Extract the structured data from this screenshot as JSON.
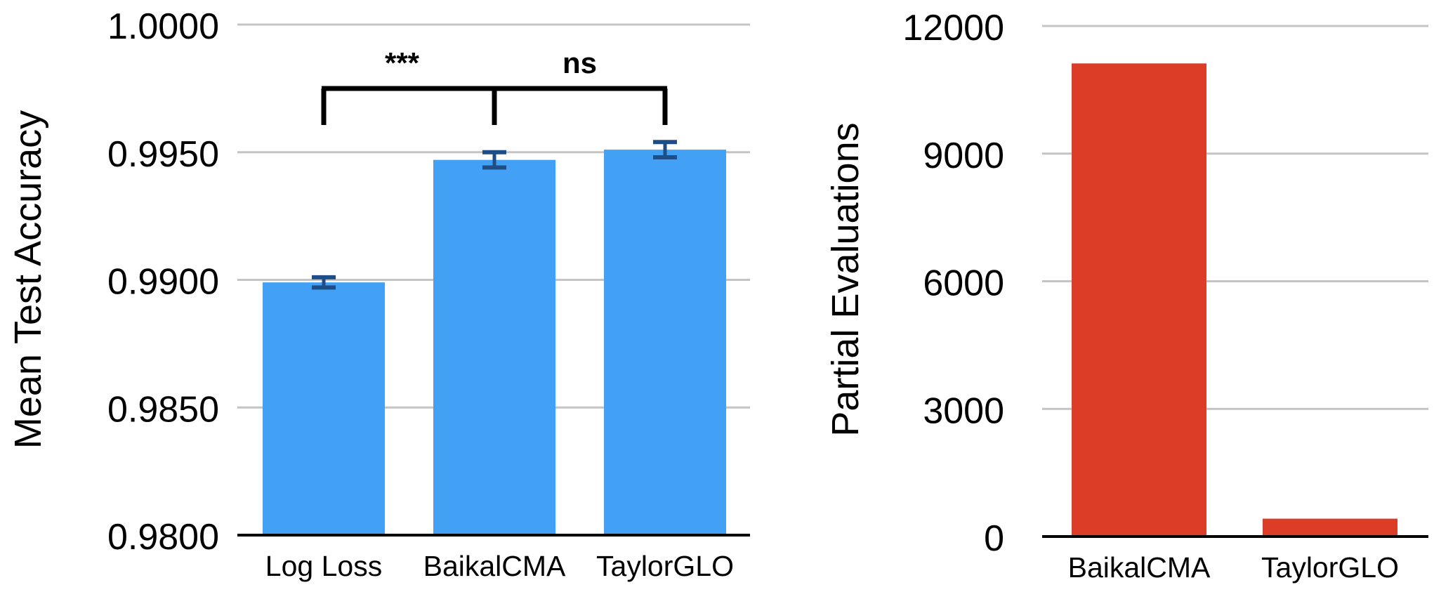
{
  "chart_data": [
    {
      "type": "bar",
      "categories": [
        "Log Loss",
        "BaikalCMA",
        "TaylorGLO"
      ],
      "values": [
        0.9899,
        0.9947,
        0.9951
      ],
      "error_bars": [
        0.0002,
        0.0003,
        0.0003
      ],
      "ylabel": "Mean Test Accuracy",
      "xlabel": "",
      "ylim": [
        0.98,
        1.0
      ],
      "yticks": [
        "0.9800",
        "0.9850",
        "0.9900",
        "0.9950",
        "1.0000"
      ],
      "ytick_values": [
        0.98,
        0.985,
        0.99,
        0.995,
        1.0
      ],
      "grid": true,
      "bar_color": "#42a0f5",
      "error_color": "#1f4e86",
      "significance": [
        {
          "from": "Log Loss",
          "to": "BaikalCMA",
          "label": "***"
        },
        {
          "from": "BaikalCMA",
          "to": "TaylorGLO",
          "label": "ns"
        }
      ]
    },
    {
      "type": "bar",
      "categories": [
        "BaikalCMA",
        "TaylorGLO"
      ],
      "values": [
        11120,
        420
      ],
      "ylabel": "Partial Evaluations",
      "xlabel": "",
      "ylim": [
        0,
        12000
      ],
      "yticks": [
        "0",
        "3000",
        "6000",
        "9000",
        "12000"
      ],
      "ytick_values": [
        0,
        3000,
        6000,
        9000,
        12000
      ],
      "grid": true,
      "bar_color": "#dc3d26"
    }
  ]
}
